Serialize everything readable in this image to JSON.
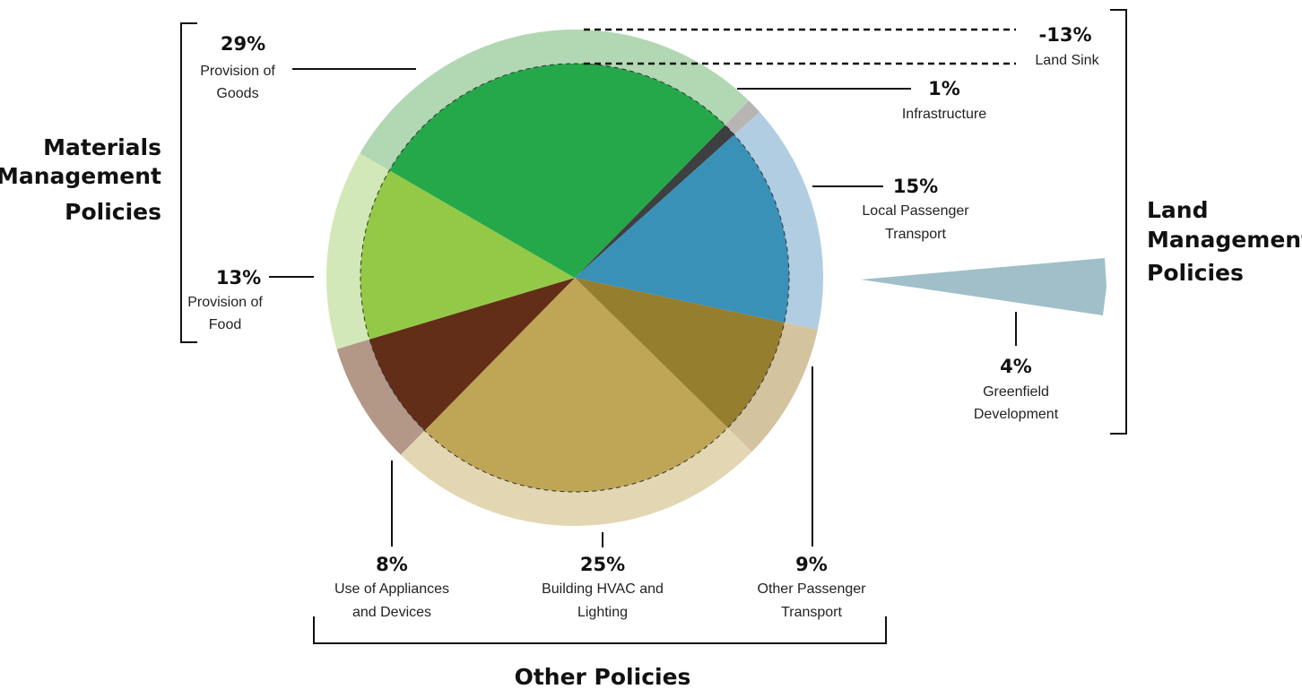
{
  "chart_data": {
    "type": "pie",
    "slices": [
      {
        "key": "infra",
        "value": 1,
        "pct_label": "1%",
        "label_lines": [
          "Infrastructure"
        ],
        "inner": "#3d3f40",
        "outer": "#b9b4b4"
      },
      {
        "key": "local",
        "value": 15,
        "pct_label": "15%",
        "label_lines": [
          "Local Passenger",
          "Transport"
        ],
        "inner": "#3a91b8",
        "outer": "#b1cde2"
      },
      {
        "key": "other_pt",
        "value": 9,
        "pct_label": "9%",
        "label_lines": [
          "Other Passenger",
          "Transport"
        ],
        "inner": "#967e2f",
        "outer": "#d3c39e"
      },
      {
        "key": "hvac",
        "value": 25,
        "pct_label": "25%",
        "label_lines": [
          "Building HVAC and",
          "Lighting"
        ],
        "inner": "#bfa556",
        "outer": "#e3d6b2"
      },
      {
        "key": "appl",
        "value": 8,
        "pct_label": "8%",
        "label_lines": [
          "Use of Appliances",
          "and Devices"
        ],
        "inner": "#622e17",
        "outer": "#b39888"
      },
      {
        "key": "food",
        "value": 13,
        "pct_label": "13%",
        "label_lines": [
          "Provision of",
          "Food"
        ],
        "inner": "#93c947",
        "outer": "#d3e8b8"
      },
      {
        "key": "goods",
        "value": 29,
        "pct_label": "29%",
        "label_lines": [
          "Provision of",
          "Goods"
        ],
        "inner": "#25a84a",
        "outer": "#b2d7b3"
      }
    ],
    "land_sink": {
      "value": -13,
      "pct_label": "-13%",
      "label_lines": [
        "Land Sink"
      ]
    },
    "greenfield": {
      "value": 4,
      "pct_label": "4%",
      "label_lines": [
        "Greenfield",
        "Development"
      ],
      "color": "#a0bfc8"
    },
    "groups": {
      "materials": [
        "Materials",
        "Management",
        "Policies"
      ],
      "land": [
        "Land",
        "Management",
        "Policies"
      ],
      "other": [
        "Other Policies"
      ]
    }
  }
}
